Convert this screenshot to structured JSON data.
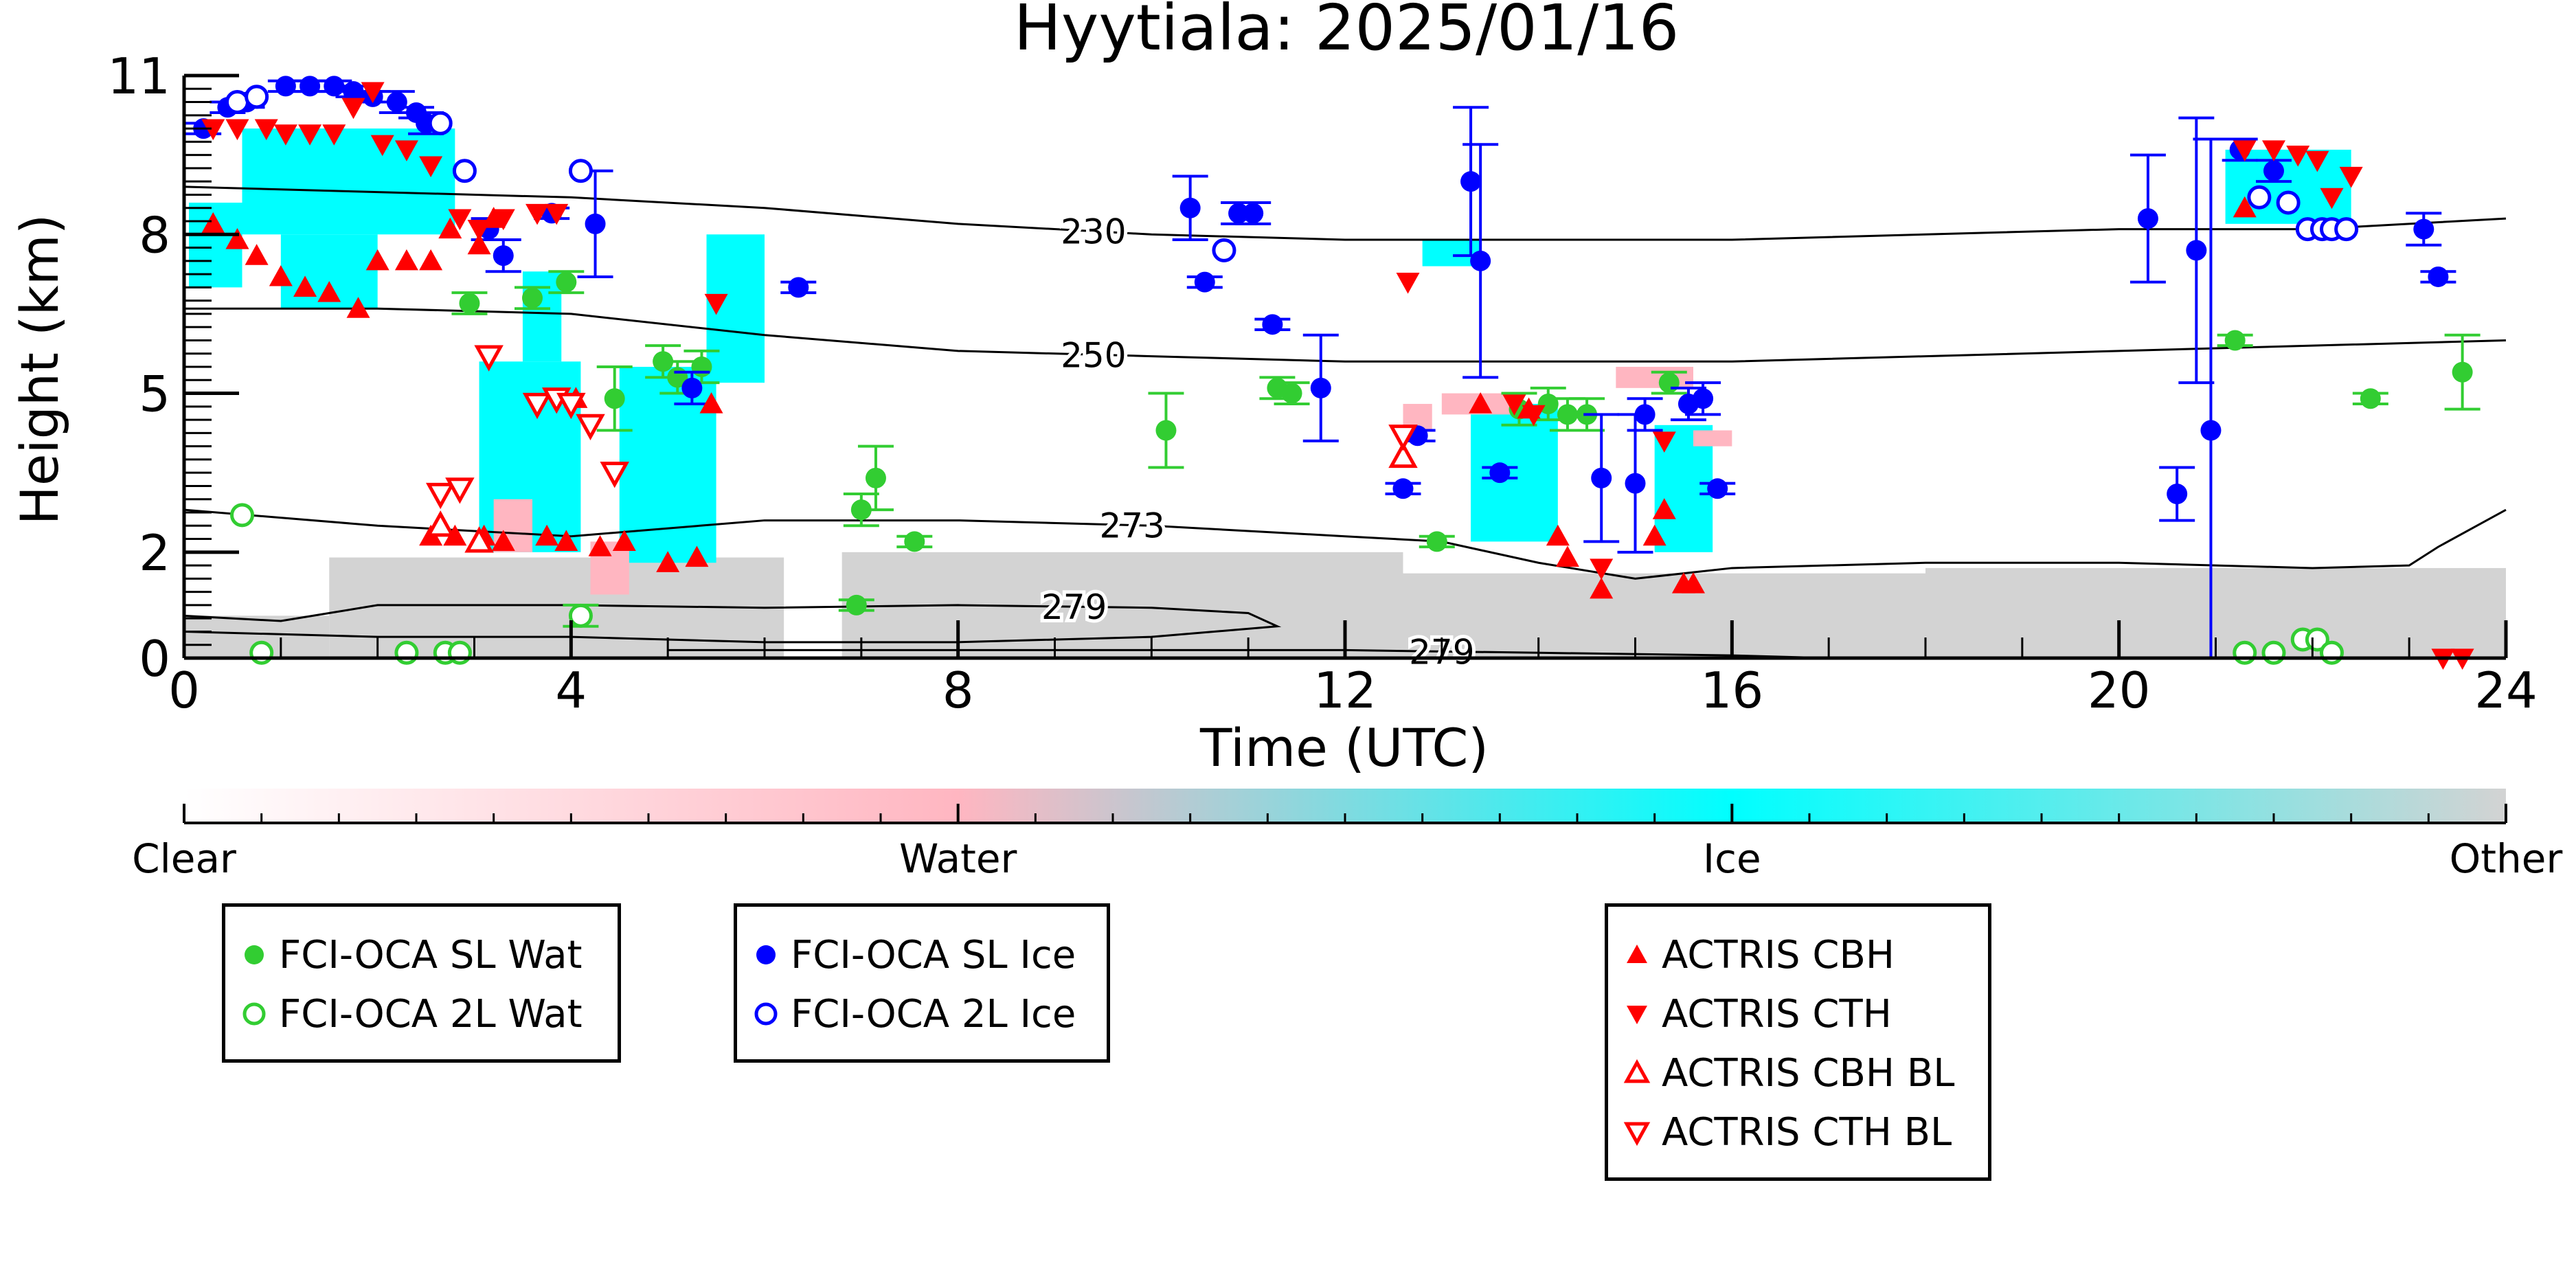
{
  "chart_data": {
    "type": "scatter",
    "title": "Hyytiala: 2025/01/16",
    "xlabel": "Time (UTC)",
    "ylabel": "Height (km)",
    "xlim": [
      0,
      24
    ],
    "ylim": [
      0,
      11
    ],
    "x_ticks": [
      0,
      4,
      8,
      12,
      16,
      20,
      24
    ],
    "y_ticks": [
      0,
      2,
      5,
      8,
      11
    ],
    "grid": false,
    "background_classes": [
      {
        "name": "Clear",
        "color": "#ffffff"
      },
      {
        "name": "Water",
        "color": "#ffb6c1"
      },
      {
        "name": "Ice",
        "color": "#00ffff"
      },
      {
        "name": "Other",
        "color": "#d3d3d3"
      }
    ],
    "colorbar_labels": [
      "Clear",
      "Water",
      "Ice",
      "Other"
    ],
    "contours": [
      {
        "level": "230",
        "label_x": 9.4,
        "points": [
          [
            0,
            8.9
          ],
          [
            2,
            8.8
          ],
          [
            4,
            8.7
          ],
          [
            6,
            8.5
          ],
          [
            8,
            8.2
          ],
          [
            10,
            8.0
          ],
          [
            12,
            7.9
          ],
          [
            14,
            7.9
          ],
          [
            16,
            7.9
          ],
          [
            18,
            8.0
          ],
          [
            20,
            8.1
          ],
          [
            22,
            8.1
          ],
          [
            24,
            8.3
          ]
        ]
      },
      {
        "name_hidden": true,
        "level": "250",
        "label_x": 9.4,
        "points": [
          [
            0,
            6.6
          ],
          [
            2,
            6.6
          ],
          [
            4,
            6.5
          ],
          [
            6,
            6.1
          ],
          [
            8,
            5.8
          ],
          [
            10,
            5.7
          ],
          [
            12,
            5.6
          ],
          [
            14,
            5.6
          ],
          [
            16,
            5.6
          ],
          [
            18,
            5.7
          ],
          [
            20,
            5.8
          ],
          [
            22,
            5.9
          ],
          [
            24,
            6.0
          ]
        ]
      },
      {
        "level": "273",
        "label_x": 9.8,
        "points": [
          [
            0,
            2.8
          ],
          [
            2,
            2.5
          ],
          [
            4,
            2.3
          ],
          [
            6,
            2.6
          ],
          [
            8,
            2.6
          ],
          [
            10,
            2.5
          ],
          [
            12,
            2.3
          ],
          [
            13,
            2.2
          ],
          [
            14,
            1.8
          ],
          [
            15,
            1.5
          ],
          [
            16,
            1.7
          ],
          [
            18,
            1.8
          ],
          [
            20,
            1.8
          ],
          [
            22,
            1.7
          ],
          [
            23,
            1.75
          ],
          [
            23.3,
            2.1
          ],
          [
            24,
            2.8
          ]
        ]
      },
      {
        "level": "279",
        "label_x": 9.2,
        "points": [
          [
            0,
            0.8
          ],
          [
            1,
            0.7
          ],
          [
            2,
            1.0
          ],
          [
            4,
            1.0
          ],
          [
            6,
            0.95
          ],
          [
            8,
            1.0
          ],
          [
            10,
            0.95
          ],
          [
            11,
            0.85
          ],
          [
            11.3,
            0.6
          ],
          [
            10,
            0.4
          ],
          [
            8,
            0.3
          ],
          [
            6,
            0.3
          ],
          [
            4,
            0.4
          ],
          [
            2,
            0.4
          ],
          [
            0,
            0.5
          ]
        ]
      },
      {
        "level": "279",
        "label_x": 13.0,
        "points": [
          [
            5,
            0.15
          ],
          [
            8,
            0.15
          ],
          [
            12,
            0.15
          ],
          [
            14,
            0.1
          ],
          [
            16,
            0.05
          ],
          [
            17,
            0.0
          ]
        ]
      }
    ],
    "series": [
      {
        "name": "FCI-OCA SL Wat",
        "marker": "filled-circle",
        "color": "#32cd32",
        "points": [
          [
            2.95,
            6.7,
            0.2
          ],
          [
            3.6,
            6.8,
            0.2
          ],
          [
            3.95,
            7.1,
            0.2
          ],
          [
            4.45,
            4.9,
            0.6
          ],
          [
            4.95,
            5.6,
            0.3
          ],
          [
            5.1,
            5.3,
            0.3
          ],
          [
            5.35,
            5.5,
            0.3
          ],
          [
            7.0,
            2.8,
            0.3
          ],
          [
            7.15,
            3.4,
            0.6
          ],
          [
            7.55,
            2.2,
            0.1
          ],
          [
            6.95,
            1.0,
            0.1
          ],
          [
            10.15,
            4.3,
            0.7
          ],
          [
            11.3,
            5.1,
            0.2
          ],
          [
            11.45,
            5.0,
            0.2
          ],
          [
            12.95,
            2.2,
            0.1
          ],
          [
            13.8,
            4.7,
            0.3
          ],
          [
            14.1,
            4.8,
            0.3
          ],
          [
            14.3,
            4.6,
            0.3
          ],
          [
            14.5,
            4.6,
            0.3
          ],
          [
            15.35,
            5.2,
            0.2
          ],
          [
            21.2,
            6.0,
            0.1
          ],
          [
            22.6,
            4.9,
            0.1
          ],
          [
            23.55,
            5.4,
            0.7
          ]
        ]
      },
      {
        "name": "FCI-OCA 2L Wat",
        "marker": "open-circle",
        "color": "#32cd32",
        "points": [
          [
            0.6,
            2.7,
            0
          ],
          [
            0.8,
            0.1,
            0
          ],
          [
            2.3,
            0.1,
            0
          ],
          [
            2.7,
            0.1,
            0
          ],
          [
            2.85,
            0.1,
            0
          ],
          [
            4.1,
            0.8,
            0.2
          ],
          [
            21.3,
            0.1,
            0
          ],
          [
            21.6,
            0.1,
            0
          ],
          [
            21.9,
            0.35,
            0
          ],
          [
            22.05,
            0.35,
            0
          ],
          [
            22.2,
            0.1,
            0
          ]
        ]
      },
      {
        "name": "FCI-OCA SL Ice",
        "marker": "filled-circle",
        "color": "#0000ff",
        "points": [
          [
            0.2,
            10.0,
            0.1
          ],
          [
            0.45,
            10.4,
            0.1
          ],
          [
            0.65,
            10.5,
            0.1
          ],
          [
            1.05,
            10.8,
            0.1
          ],
          [
            1.3,
            10.8,
            0.1
          ],
          [
            1.55,
            10.8,
            0.1
          ],
          [
            1.75,
            10.7,
            0.1
          ],
          [
            1.95,
            10.6,
            0.1
          ],
          [
            2.2,
            10.5,
            0.2
          ],
          [
            2.4,
            10.3,
            0.1
          ],
          [
            2.5,
            10.1,
            0.2
          ],
          [
            3.15,
            8.1,
            0.2
          ],
          [
            3.3,
            7.6,
            0.3
          ],
          [
            3.8,
            8.4,
            0.1
          ],
          [
            4.25,
            8.2,
            1.0
          ],
          [
            5.25,
            5.1,
            0.3
          ],
          [
            6.35,
            7.0,
            0.1
          ],
          [
            10.4,
            8.5,
            0.6
          ],
          [
            10.55,
            7.1,
            0.1
          ],
          [
            10.9,
            8.4,
            0.2
          ],
          [
            11.05,
            8.4,
            0.2
          ],
          [
            11.25,
            6.3,
            0.1
          ],
          [
            11.75,
            5.1,
            1.0
          ],
          [
            12.6,
            3.2,
            0.1
          ],
          [
            12.75,
            4.2,
            0.1
          ],
          [
            13.3,
            9.0,
            1.4
          ],
          [
            13.4,
            7.5,
            2.2
          ],
          [
            13.6,
            3.5,
            0.1
          ],
          [
            14.65,
            3.4,
            1.2
          ],
          [
            15.0,
            3.3,
            1.3
          ],
          [
            15.1,
            4.6,
            0.3
          ],
          [
            15.55,
            4.8,
            0.3
          ],
          [
            15.7,
            4.9,
            0.3
          ],
          [
            15.85,
            3.2,
            0.1
          ],
          [
            20.3,
            8.3,
            1.2
          ],
          [
            20.6,
            3.1,
            0.5
          ],
          [
            20.8,
            7.7,
            2.5
          ],
          [
            20.95,
            4.3,
            5.5
          ],
          [
            21.25,
            9.6,
            0.2
          ],
          [
            21.6,
            9.2,
            0.2
          ],
          [
            23.15,
            8.1,
            0.3
          ],
          [
            23.3,
            7.2,
            0.1
          ]
        ]
      },
      {
        "name": "FCI-OCA 2L Ice",
        "marker": "open-circle",
        "color": "#0000ff",
        "points": [
          [
            0.55,
            10.5,
            0
          ],
          [
            0.75,
            10.6,
            0
          ],
          [
            2.65,
            10.1,
            0
          ],
          [
            2.9,
            9.2,
            0
          ],
          [
            4.1,
            9.2,
            0
          ],
          [
            10.75,
            7.7,
            0
          ],
          [
            21.45,
            8.7,
            0
          ],
          [
            21.75,
            8.6,
            0
          ],
          [
            21.95,
            8.1,
            0
          ],
          [
            22.1,
            8.1,
            0
          ],
          [
            22.2,
            8.1,
            0
          ],
          [
            22.35,
            8.1,
            0
          ]
        ]
      },
      {
        "name": "ACTRIS CBH",
        "marker": "filled-triangle-up",
        "color": "#ff0000",
        "points": [
          [
            0.3,
            8.2
          ],
          [
            0.55,
            7.9
          ],
          [
            0.75,
            7.6
          ],
          [
            1.0,
            7.2
          ],
          [
            1.25,
            7.0
          ],
          [
            1.5,
            6.9
          ],
          [
            1.8,
            6.6
          ],
          [
            2.0,
            7.5
          ],
          [
            2.3,
            7.5
          ],
          [
            2.55,
            7.5
          ],
          [
            2.75,
            8.1
          ],
          [
            3.05,
            7.8
          ],
          [
            3.2,
            8.3
          ],
          [
            4.05,
            4.9
          ],
          [
            4.55,
            2.2
          ],
          [
            5.0,
            1.8
          ],
          [
            5.3,
            1.9
          ],
          [
            5.45,
            4.8
          ],
          [
            2.55,
            2.3
          ],
          [
            2.8,
            2.3
          ],
          [
            3.1,
            2.3
          ],
          [
            3.3,
            2.2
          ],
          [
            3.75,
            2.3
          ],
          [
            3.95,
            2.2
          ],
          [
            4.3,
            2.1
          ],
          [
            13.4,
            4.8
          ],
          [
            13.9,
            4.7
          ],
          [
            14.2,
            2.3
          ],
          [
            14.3,
            1.9
          ],
          [
            14.65,
            1.3
          ],
          [
            15.2,
            2.3
          ],
          [
            15.3,
            2.8
          ],
          [
            15.5,
            1.4
          ],
          [
            15.6,
            1.4
          ],
          [
            21.3,
            8.5
          ]
        ]
      },
      {
        "name": "ACTRIS CTH",
        "marker": "filled-triangle-down",
        "color": "#ff0000",
        "points": [
          [
            0.3,
            10.0
          ],
          [
            0.55,
            10.0
          ],
          [
            0.85,
            10.0
          ],
          [
            1.05,
            9.9
          ],
          [
            1.3,
            9.9
          ],
          [
            1.55,
            9.9
          ],
          [
            1.75,
            10.4
          ],
          [
            1.95,
            10.7
          ],
          [
            2.05,
            9.7
          ],
          [
            2.3,
            9.6
          ],
          [
            2.55,
            9.3
          ],
          [
            2.85,
            8.3
          ],
          [
            3.05,
            8.1
          ],
          [
            3.3,
            8.3
          ],
          [
            3.65,
            8.4
          ],
          [
            3.85,
            8.4
          ],
          [
            5.5,
            6.7
          ],
          [
            12.65,
            7.1
          ],
          [
            13.75,
            4.8
          ],
          [
            13.95,
            4.6
          ],
          [
            14.65,
            1.7
          ],
          [
            15.3,
            4.1
          ],
          [
            21.3,
            9.6
          ],
          [
            21.6,
            9.6
          ],
          [
            21.85,
            9.5
          ],
          [
            22.05,
            9.4
          ],
          [
            22.2,
            8.7
          ],
          [
            22.4,
            9.1
          ],
          [
            23.35,
            0.0
          ],
          [
            23.55,
            0.0
          ]
        ]
      },
      {
        "name": "ACTRIS CBH BL",
        "marker": "open-triangle-up",
        "color": "#ff0000",
        "points": [
          [
            2.65,
            2.5
          ],
          [
            3.05,
            2.2
          ],
          [
            12.6,
            3.8
          ]
        ]
      },
      {
        "name": "ACTRIS CTH BL",
        "marker": "open-triangle-down",
        "color": "#ff0000",
        "points": [
          [
            2.65,
            3.1
          ],
          [
            2.85,
            3.2
          ],
          [
            3.15,
            5.7
          ],
          [
            3.65,
            4.8
          ],
          [
            3.85,
            4.9
          ],
          [
            4.0,
            4.8
          ],
          [
            4.2,
            4.4
          ],
          [
            4.45,
            3.5
          ],
          [
            12.6,
            4.2
          ]
        ]
      }
    ],
    "legends": [
      {
        "entries": [
          "FCI-OCA SL Wat",
          "FCI-OCA 2L Wat"
        ]
      },
      {
        "entries": [
          "FCI-OCA SL Ice",
          "FCI-OCA 2L Ice"
        ]
      },
      {
        "entries": [
          "ACTRIS CBH",
          "ACTRIS CTH",
          "ACTRIS CBH BL",
          "ACTRIS CTH BL"
        ]
      }
    ]
  }
}
